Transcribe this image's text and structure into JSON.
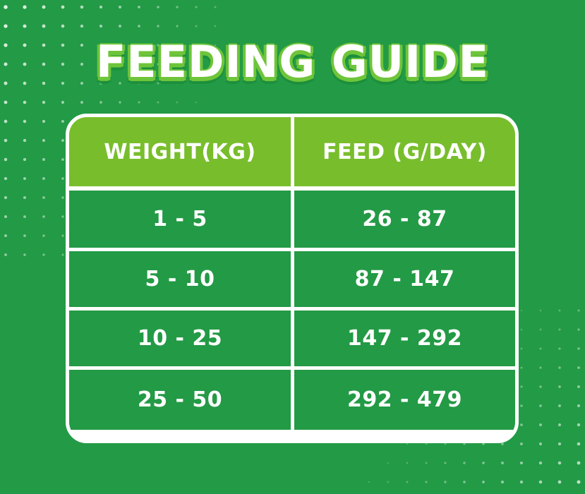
{
  "title": "FEEDING GUIDE",
  "colors": {
    "background": "#239a45",
    "header": "#78be2c",
    "title_outline": "#6ec53a",
    "border": "#ffffff"
  },
  "table": {
    "headers": [
      "WEIGHT(KG)",
      "FEED (G/DAY)"
    ],
    "rows": [
      [
        "1 - 5",
        "26 - 87"
      ],
      [
        "5 - 10",
        "87 - 147"
      ],
      [
        "10 - 25",
        "147 - 292"
      ],
      [
        "25 - 50",
        "292 - 479"
      ]
    ]
  }
}
